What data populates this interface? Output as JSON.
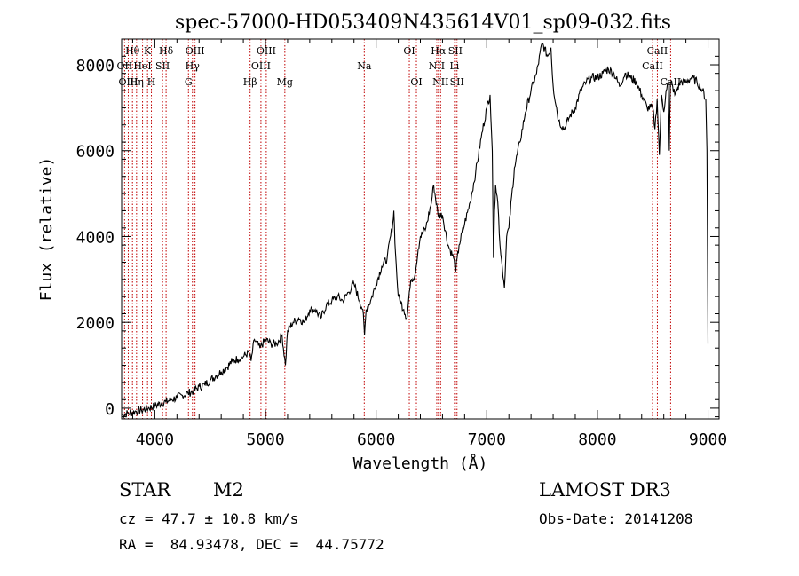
{
  "chart_data": {
    "type": "line",
    "title": "spec-57000-HD053409N435614V01_sp09-032.fits",
    "xlabel": "Wavelength (Å)",
    "ylabel": "Flux (relative)",
    "xlim": [
      3700,
      9100
    ],
    "ylim": [
      -250,
      8600
    ],
    "x_ticks": [
      4000,
      5000,
      6000,
      7000,
      8000,
      9000
    ],
    "y_ticks": [
      0,
      2000,
      4000,
      6000,
      8000
    ],
    "series": [
      {
        "name": "flux",
        "x": [
          3700,
          3760,
          3820,
          3880,
          3940,
          4000,
          4060,
          4100,
          4150,
          4200,
          4250,
          4300,
          4350,
          4400,
          4450,
          4500,
          4550,
          4600,
          4650,
          4700,
          4750,
          4800,
          4850,
          4870,
          4900,
          4950,
          5000,
          5050,
          5100,
          5150,
          5180,
          5200,
          5250,
          5300,
          5350,
          5400,
          5450,
          5500,
          5550,
          5600,
          5650,
          5700,
          5750,
          5800,
          5850,
          5880,
          5895,
          5910,
          5950,
          6000,
          6050,
          6100,
          6150,
          6160,
          6175,
          6200,
          6250,
          6280,
          6300,
          6320,
          6350,
          6380,
          6400,
          6450,
          6500,
          6520,
          6560,
          6600,
          6650,
          6700,
          6720,
          6750,
          6800,
          6850,
          6900,
          6950,
          7000,
          7030,
          7050,
          7060,
          7070,
          7080,
          7100,
          7120,
          7140,
          7160,
          7180,
          7200,
          7250,
          7300,
          7350,
          7400,
          7450,
          7500,
          7550,
          7580,
          7600,
          7650,
          7700,
          7750,
          7800,
          7850,
          7900,
          7950,
          8000,
          8050,
          8100,
          8150,
          8200,
          8250,
          8300,
          8350,
          8400,
          8450,
          8500,
          8520,
          8540,
          8560,
          8580,
          8600,
          8620,
          8640,
          8650,
          8660,
          8680,
          8700,
          8750,
          8800,
          8850,
          8900,
          8950,
          8980,
          8990,
          9000
        ],
        "y": [
          -150,
          -120,
          -80,
          -50,
          0,
          50,
          120,
          150,
          200,
          250,
          300,
          350,
          400,
          500,
          550,
          650,
          750,
          850,
          950,
          1100,
          1150,
          1200,
          1300,
          1100,
          1600,
          1400,
          1600,
          1500,
          1500,
          1700,
          1000,
          1800,
          2000,
          2100,
          2000,
          2300,
          2300,
          2100,
          2400,
          2500,
          2600,
          2500,
          2700,
          2900,
          2500,
          2300,
          1700,
          2300,
          2500,
          2900,
          3300,
          3500,
          4300,
          4600,
          3600,
          2600,
          2300,
          2100,
          2700,
          3000,
          3100,
          3700,
          4000,
          4200,
          4800,
          5200,
          4500,
          4500,
          3800,
          3500,
          3200,
          3800,
          4300,
          4800,
          5500,
          6300,
          7000,
          7300,
          6000,
          3500,
          4600,
          5200,
          4800,
          3800,
          3300,
          2800,
          4000,
          4200,
          5600,
          6200,
          6900,
          7400,
          7800,
          8500,
          8200,
          8400,
          7500,
          6700,
          6500,
          6800,
          7000,
          7400,
          7600,
          7700,
          7700,
          7800,
          7900,
          7800,
          7500,
          7800,
          7700,
          7600,
          7300,
          7000,
          7000,
          6500,
          7200,
          5900,
          7300,
          6900,
          7400,
          7600,
          6000,
          7600,
          7500,
          7300,
          7600,
          7600,
          7700,
          7600,
          7400,
          7200,
          6000,
          1500
        ]
      }
    ],
    "lines": [
      {
        "label": "Hθ",
        "x": 3798,
        "row": 1
      },
      {
        "label": "OII",
        "x": 3727,
        "row": 2
      },
      {
        "label": "OIII",
        "x": 3760,
        "row": 3
      },
      {
        "label": "K",
        "x": 3934,
        "row": 1
      },
      {
        "label": "HeI",
        "x": 3889,
        "row": 2
      },
      {
        "label": "Hη",
        "x": 3835,
        "row": 3
      },
      {
        "label": "SII",
        "x": 4070,
        "row": 2
      },
      {
        "label": "H",
        "x": 3969,
        "row": 3
      },
      {
        "label": "Hδ",
        "x": 4102,
        "row": 1
      },
      {
        "label": "OIII",
        "x": 4363,
        "row": 1
      },
      {
        "label": "Hγ",
        "x": 4340,
        "row": 2
      },
      {
        "label": "G",
        "x": 4304,
        "row": 3
      },
      {
        "label": "Hβ",
        "x": 4861,
        "row": 3
      },
      {
        "label": "OIII",
        "x": 5007,
        "row": 1
      },
      {
        "label": "OIII",
        "x": 4959,
        "row": 2
      },
      {
        "label": "Mg",
        "x": 5175,
        "row": 3
      },
      {
        "label": "Na",
        "x": 5893,
        "row": 2
      },
      {
        "label": "OI",
        "x": 6300,
        "row": 1
      },
      {
        "label": "OI",
        "x": 6364,
        "row": 3
      },
      {
        "label": "Hα",
        "x": 6563,
        "row": 1
      },
      {
        "label": "SII",
        "x": 6716,
        "row": 1
      },
      {
        "label": "NII",
        "x": 6548,
        "row": 2
      },
      {
        "label": "Li",
        "x": 6708,
        "row": 2
      },
      {
        "label": "NII",
        "x": 6583,
        "row": 3
      },
      {
        "label": "SII",
        "x": 6731,
        "row": 3
      },
      {
        "label": "CaII",
        "x": 8542,
        "row": 1
      },
      {
        "label": "CaII",
        "x": 8498,
        "row": 2
      },
      {
        "label": "CaII",
        "x": 8662,
        "row": 3
      }
    ]
  },
  "info": {
    "class": "STAR",
    "subclass": "M2",
    "survey": "LAMOST DR3",
    "cz": "cz = 47.7 ± 10.8 km/s",
    "obs_date": "Obs-Date: 20141208",
    "coords": "RA =  84.93478, DEC =  44.75772"
  }
}
